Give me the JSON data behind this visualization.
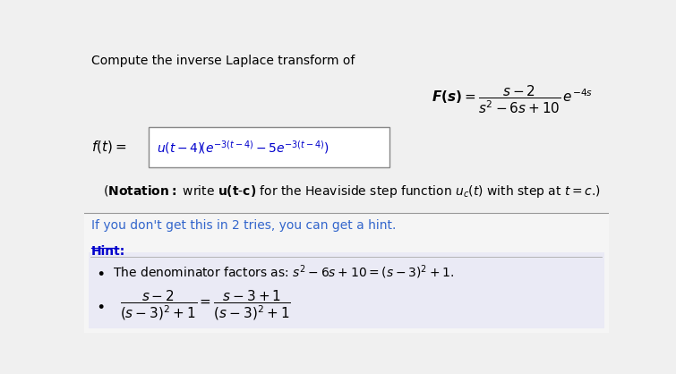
{
  "bg_color": "#f0f0f0",
  "top_bg_color": "#f0f0f0",
  "bottom_bg_color": "#f5f5f5",
  "hint_bg_color": "#eaeaf5",
  "text_color": "#000000",
  "blue_color": "#0000cc",
  "link_color": "#3366cc",
  "divider_color": "#aaaaaa",
  "title": "Compute the inverse Laplace transform of",
  "hint_intro": "If you don't get this in 2 tries, you can get a hint.",
  "hint_label": "Hint:",
  "fs": 10
}
